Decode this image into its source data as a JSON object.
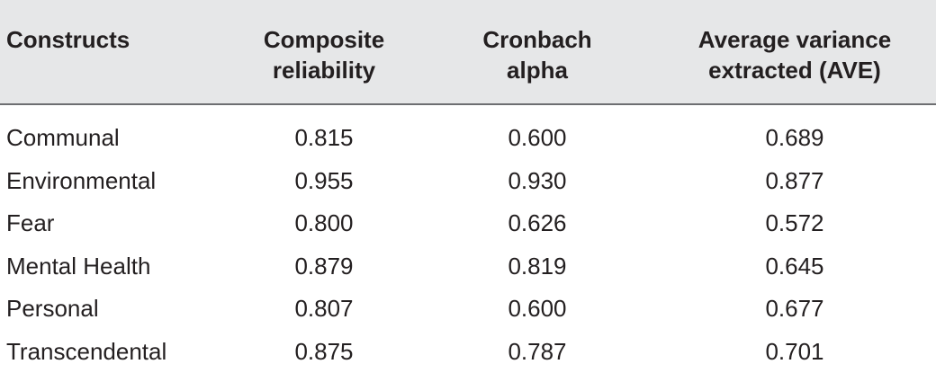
{
  "table": {
    "headers": [
      [
        "Constructs"
      ],
      [
        "Composite",
        "reliability"
      ],
      [
        "Cronbach",
        "alpha"
      ],
      [
        "Average variance",
        "extracted (AVE)"
      ]
    ],
    "rows": [
      [
        "Communal",
        "0.815",
        "0.600",
        "0.689"
      ],
      [
        "Environmental",
        "0.955",
        "0.930",
        "0.877"
      ],
      [
        "Fear",
        "0.800",
        "0.626",
        "0.572"
      ],
      [
        "Mental Health",
        "0.879",
        "0.819",
        "0.645"
      ],
      [
        "Personal",
        "0.807",
        "0.600",
        "0.677"
      ],
      [
        "Transcendental",
        "0.875",
        "0.787",
        "0.701"
      ]
    ]
  },
  "colors": {
    "header_background": "#e6e7e8",
    "rule": "#6d6e71",
    "text": "#231f20"
  }
}
